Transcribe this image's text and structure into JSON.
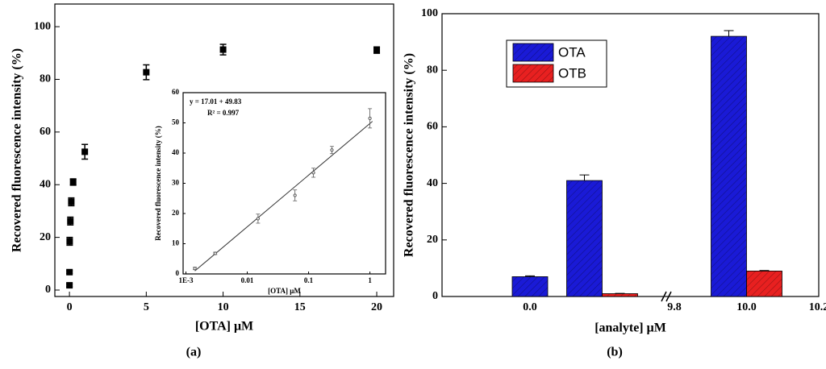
{
  "chart_data": [
    {
      "type": "scatter",
      "xlabel": "[OTA] μM",
      "ylabel": "Recovered fluorescence intensity (%)",
      "caption": "(a)",
      "x": [
        0.0014,
        0.003,
        0.015,
        0.06,
        0.12,
        0.24,
        1,
        5,
        10,
        20
      ],
      "values": [
        1.8,
        6.8,
        18.5,
        26.2,
        33.5,
        41,
        52.5,
        82.7,
        91.3,
        91.1
      ],
      "errors": [
        0.5,
        0.5,
        1.5,
        1.5,
        1.5,
        1.2,
        2.8,
        2.8,
        2,
        1.2
      ],
      "color": "#000000",
      "xlim": [
        -0.95,
        21.1
      ],
      "xticks": [
        0,
        5,
        10,
        15,
        20
      ],
      "ylim": [
        -2.45,
        108.6
      ],
      "yticks": [
        0,
        20,
        40,
        60,
        80,
        100
      ]
    },
    {
      "type": "scatter",
      "xlabel": "[OTA] μM",
      "ylabel": "Recovered fluorescence intensity (%)",
      "annotations": [
        "y = 17.01 + 49.83",
        "R² = 0.997"
      ],
      "x": [
        0.0014,
        0.003,
        0.015,
        0.06,
        0.12,
        0.24,
        1
      ],
      "values": [
        1.8,
        6.8,
        18.3,
        26,
        33.5,
        41,
        51.5
      ],
      "errors": [
        0.4,
        0.4,
        1.5,
        1.8,
        1.5,
        1.2,
        3.2
      ],
      "color": "#555555",
      "fit": {
        "x": [
          0.0014,
          1.1
        ],
        "values": [
          1,
          50.5
        ]
      },
      "xscale": "log",
      "xlim": [
        0.0009,
        1.8
      ],
      "xticks": [
        {
          "value": 0.001,
          "label": "1E-3"
        },
        0.01,
        0.1,
        1
      ],
      "ylim": [
        0,
        60
      ],
      "yticks": [
        0,
        10,
        20,
        30,
        40,
        50,
        60
      ]
    },
    {
      "type": "bar",
      "xlabel": "[analyte] μM",
      "ylabel": "Recovered fluorescence intensity (%)",
      "caption": "(b)",
      "categories": [
        "0.0",
        null,
        "9.8",
        "10.0",
        "10.2"
      ],
      "series": [
        {
          "name": "OTA",
          "color": "#1a1ad6",
          "values": [
            7,
            41,
            null,
            92,
            null
          ],
          "errors": [
            0.3,
            2,
            null,
            2,
            null
          ]
        },
        {
          "name": "OTB",
          "color": "#e82020",
          "values": [
            null,
            1,
            null,
            9,
            null
          ],
          "errors": [
            null,
            0.1,
            null,
            0.2,
            null
          ]
        }
      ],
      "ylim": [
        0,
        100
      ],
      "yticks": [
        0,
        20,
        40,
        60,
        80,
        100
      ],
      "legend": "upper left"
    }
  ]
}
